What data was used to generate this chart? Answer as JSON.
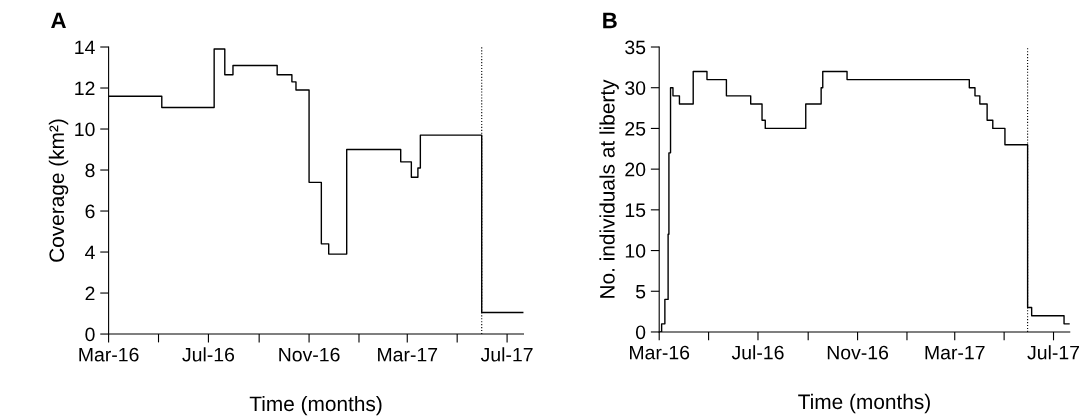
{
  "chart_data": [
    {
      "type": "step",
      "annotations": [
        "A"
      ],
      "xlabel": "Time (months)",
      "ylabel": "Coverage (km²)",
      "x": [
        "2016-03-01",
        "2016-05-05",
        "2016-07-08",
        "2016-07-21",
        "2016-07-31",
        "2016-09-23",
        "2016-10-11",
        "2016-10-16",
        "2016-11-01",
        "2016-11-16",
        "2016-11-25",
        "2016-12-17",
        "2017-02-21",
        "2017-03-06",
        "2017-03-14",
        "2017-03-17",
        "2017-05-31",
        "2017-07-21"
      ],
      "series": [
        {
          "color": "#000000",
          "values": [
            11.6,
            11.05,
            13.9,
            12.65,
            13.1,
            12.65,
            12.3,
            11.9,
            7.4,
            4.4,
            3.9,
            9.0,
            8.4,
            7.65,
            8.1,
            9.7,
            1.05,
            1.05
          ]
        }
      ],
      "xlim": [
        "2016-03-01",
        "2017-07-21"
      ],
      "xticks": [
        {
          "value": "2016-03-01",
          "label": "Mar-16"
        },
        {
          "value": "2016-05-01",
          "label": null
        },
        {
          "value": "2016-07-01",
          "label": "Jul-16"
        },
        {
          "value": "2016-09-01",
          "label": null
        },
        {
          "value": "2016-11-01",
          "label": "Nov-16"
        },
        {
          "value": "2017-01-01",
          "label": null
        },
        {
          "value": "2017-03-01",
          "label": "Mar-17"
        },
        {
          "value": "2017-05-01",
          "label": null
        },
        {
          "value": "2017-07-01",
          "label": "Jul-17"
        }
      ],
      "ylim": [
        0,
        14
      ],
      "yticks": [
        0,
        2,
        4,
        6,
        8,
        10,
        12,
        14
      ],
      "grid": false,
      "legend": false,
      "ref_lines": [
        {
          "axis": "x",
          "value": "2017-05-31",
          "color": "#000000",
          "line_style": "dotted"
        }
      ]
    },
    {
      "type": "step",
      "annotations": [
        "B"
      ],
      "xlabel": "Time (months)",
      "ylabel": "No. individuals at liberty",
      "x": [
        "2016-03-02",
        "2016-03-04",
        "2016-03-08",
        "2016-03-12",
        "2016-03-13",
        "2016-03-15",
        "2016-03-18",
        "2016-03-26",
        "2016-04-12",
        "2016-04-29",
        "2016-05-23",
        "2016-06-22",
        "2016-07-06",
        "2016-07-10",
        "2016-08-29",
        "2016-09-17",
        "2016-09-19",
        "2016-10-19",
        "2017-03-19",
        "2017-03-26",
        "2017-04-01",
        "2017-04-10",
        "2017-04-17",
        "2017-05-02",
        "2017-05-30",
        "2017-06-04",
        "2017-07-14",
        "2017-07-21"
      ],
      "series": [
        {
          "color": "#000000",
          "values": [
            0,
            1,
            4,
            12,
            22,
            30,
            29,
            28,
            32,
            31,
            29,
            28,
            26,
            25,
            28,
            30,
            32,
            31,
            30,
            29,
            28,
            26,
            25,
            23,
            3,
            2,
            1,
            1
          ]
        }
      ],
      "xlim": [
        "2016-03-01",
        "2017-07-21"
      ],
      "xticks": [
        {
          "value": "2016-03-01",
          "label": "Mar-16"
        },
        {
          "value": "2016-05-01",
          "label": null
        },
        {
          "value": "2016-07-01",
          "label": "Jul-16"
        },
        {
          "value": "2016-09-01",
          "label": null
        },
        {
          "value": "2016-11-01",
          "label": "Nov-16"
        },
        {
          "value": "2017-01-01",
          "label": null
        },
        {
          "value": "2017-03-01",
          "label": "Mar-17"
        },
        {
          "value": "2017-05-01",
          "label": null
        },
        {
          "value": "2017-07-01",
          "label": "Jul-17"
        }
      ],
      "ylim": [
        0,
        35
      ],
      "yticks": [
        0,
        5,
        10,
        15,
        20,
        25,
        30,
        35
      ],
      "grid": false,
      "legend": false,
      "ref_lines": [
        {
          "axis": "x",
          "value": "2017-05-30",
          "color": "#000000",
          "line_style": "dotted"
        }
      ]
    }
  ]
}
